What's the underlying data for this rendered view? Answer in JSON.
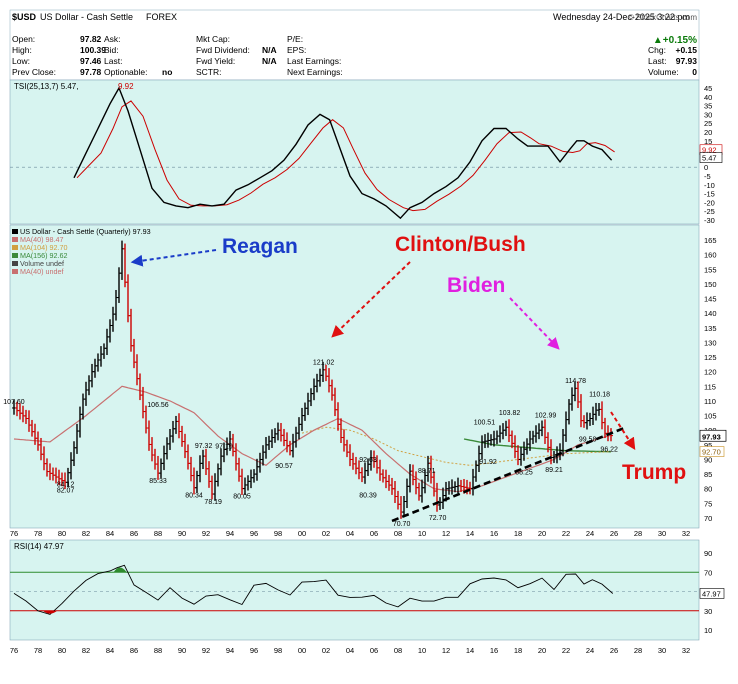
{
  "header": {
    "symbol": "$USD",
    "name": "US Dollar - Cash Settle",
    "exchange": "FOREX",
    "date": "Wednesday 24-Dec-2025 3:22 pm",
    "brand": "© StockCharts.com",
    "change_pct": "▲+0.15%",
    "fields": [
      {
        "label": "Open:",
        "value": "97.82"
      },
      {
        "label": "High:",
        "value": "100.39"
      },
      {
        "label": "Low:",
        "value": "97.46"
      },
      {
        "label": "Prev Close:",
        "value": "97.78"
      }
    ],
    "fields2": [
      {
        "label": "Ask:",
        "value": ""
      },
      {
        "label": "Bid:",
        "value": ""
      },
      {
        "label": "Last:",
        "value": ""
      },
      {
        "label": "Optionable:",
        "value": "no"
      }
    ],
    "fields3": [
      {
        "label": "Mkt Cap:",
        "value": ""
      },
      {
        "label": "Fwd Dividend:",
        "value": "N/A"
      },
      {
        "label": "Fwd Yield:",
        "value": "N/A"
      },
      {
        "label": "SCTR:",
        "value": ""
      }
    ],
    "fields4": [
      {
        "label": "P/E:",
        "value": ""
      },
      {
        "label": "EPS:",
        "value": ""
      },
      {
        "label": "Last Earnings:",
        "value": ""
      },
      {
        "label": "Next Earnings:",
        "value": ""
      }
    ],
    "fields5": [
      {
        "label": "Chg:",
        "value": "+0.15"
      },
      {
        "label": "Last:",
        "value": "97.93"
      },
      {
        "label": "Volume:",
        "value": "0"
      }
    ]
  },
  "colors": {
    "panel_bg": "#d7f4f0",
    "up": "#000000",
    "down": "#cc0000",
    "tsi": "#000000",
    "tsi_signal": "#cc0000",
    "ma40": "#c87070",
    "ma104": "#d0a040",
    "ma156": "#3a8a3a",
    "reagan": "#1a3cc8",
    "clinton": "#e01010",
    "biden": "#e020e0",
    "trump": "#e01010",
    "rsi_upper": "#2e8b2e",
    "rsi_lower": "#cc0000"
  },
  "chart_data": [
    {
      "type": "line",
      "title": "TSI(25,13,7) 5.47, 9.92",
      "indicator": "TSI",
      "legend_main": "TSI(25,13,7) 5.47,",
      "legend_signal": "9.92",
      "ylim": [
        -30,
        45
      ],
      "y_ticks": [
        45,
        40,
        35,
        30,
        25,
        20,
        15,
        10,
        5,
        0,
        -5,
        -10,
        -15,
        -20,
        -25,
        -30
      ],
      "y_tick_labels": [
        "45",
        "40",
        "35",
        "30",
        "25",
        "20",
        "15",
        "10",
        "5",
        "0",
        "-5",
        "-10",
        "-15",
        "-20",
        "-25",
        "-30"
      ],
      "last_labels": [
        "9.92",
        "5.47"
      ],
      "series": [
        {
          "x": [
            1981,
            1982,
            1983,
            1984,
            1984.75,
            1985.5,
            1986.5,
            1987.5,
            1988.5,
            1989.5,
            1990.5,
            1991.5,
            1992.5,
            1993.5,
            1994.5,
            1995.5,
            1996.5,
            1997.5,
            1998.5,
            1999.5,
            2000.5,
            2001.5,
            2002.3,
            2003.2,
            2004,
            2005,
            2006,
            2007,
            2008.2,
            2009,
            2010,
            2011,
            2012,
            2013,
            2014,
            2015,
            2016,
            2017,
            2018,
            2018.8,
            2019.5,
            2020.5,
            2021.5,
            2022.3,
            2022.9,
            2023.5,
            2024.2,
            2025,
            2025.8
          ],
          "values": [
            -6,
            8,
            22,
            36,
            45,
            32,
            10,
            -12,
            -20,
            -22,
            -23,
            -21,
            -22,
            -21,
            -13,
            -10,
            -6,
            -2,
            4,
            13,
            24,
            30,
            27,
            10,
            -5,
            -15,
            -18,
            -22,
            -29,
            -23,
            -20,
            -15,
            -11,
            -6,
            3,
            15,
            22,
            22,
            16,
            12,
            12,
            12,
            3,
            10,
            15,
            15,
            12,
            10,
            4
          ]
        }
      ]
    },
    {
      "type": "bar",
      "title": "US Dollar - Cash Settle (Quarterly) 97.93",
      "legend": [
        "US Dollar - Cash Settle (Quarterly) 97.93",
        "MA(40) 98.47",
        "MA(104) 92.70",
        "MA(156) 92.62",
        "Volume undef",
        "MA(40) undef"
      ],
      "ylim": [
        65,
        165
      ],
      "y_ticks": [
        165,
        160,
        155,
        150,
        145,
        140,
        135,
        130,
        125,
        120,
        115,
        110,
        105,
        100,
        95,
        90,
        85,
        80,
        75,
        70
      ],
      "y_tick_labels": [
        "165",
        "160",
        "155",
        "150",
        "145",
        "140",
        "135",
        "130",
        "125",
        "120",
        "115",
        "110",
        "105",
        "100",
        "95",
        "90",
        "85",
        "80",
        "75",
        "70"
      ],
      "x_ticks": [
        1976,
        1978,
        1980,
        1982,
        1984,
        1986,
        1988,
        1990,
        1992,
        1994,
        1996,
        1998,
        2000,
        2002,
        2004,
        2006,
        2008,
        2010,
        2012,
        2014,
        2016,
        2018,
        2020,
        2022,
        2024,
        2026,
        2028,
        2030,
        2032
      ],
      "x_tick_labels": [
        "76",
        "78",
        "80",
        "82",
        "84",
        "86",
        "88",
        "90",
        "92",
        "94",
        "96",
        "98",
        "00",
        "02",
        "04",
        "06",
        "08",
        "10",
        "12",
        "14",
        "16",
        "18",
        "20",
        "22",
        "24",
        "26",
        "28",
        "30",
        "32"
      ],
      "last_labels": [
        "97.93",
        "92.70"
      ],
      "price_key": [
        [
          1976,
          107.6
        ],
        [
          1977,
          104
        ],
        [
          1978,
          95
        ],
        [
          1978.7,
          86
        ],
        [
          1979.5,
          84
        ],
        [
          1980.3,
          82.07
        ],
        [
          1981,
          94
        ],
        [
          1981.7,
          110
        ],
        [
          1982.5,
          120
        ],
        [
          1983.5,
          128
        ],
        [
          1984.4,
          142
        ],
        [
          1985,
          162
        ],
        [
          1985.7,
          130
        ],
        [
          1986.5,
          112
        ],
        [
          1987.3,
          94
        ],
        [
          1988,
          85.33
        ],
        [
          1988.8,
          96
        ],
        [
          1989.5,
          103
        ],
        [
          1990.3,
          92
        ],
        [
          1991,
          80.34
        ],
        [
          1991.7,
          92
        ],
        [
          1992.5,
          78.19
        ],
        [
          1993.3,
          92
        ],
        [
          1994,
          97
        ],
        [
          1995,
          80.05
        ],
        [
          1996,
          85
        ],
        [
          1997,
          95
        ],
        [
          1998,
          100
        ],
        [
          1999,
          93
        ],
        [
          2000,
          105
        ],
        [
          2001,
          115
        ],
        [
          2001.8,
          121.02
        ],
        [
          2002.5,
          112
        ],
        [
          2003.2,
          98
        ],
        [
          2004,
          90
        ],
        [
          2005,
          84
        ],
        [
          2005.8,
          91
        ],
        [
          2006.5,
          85
        ],
        [
          2007.5,
          80
        ],
        [
          2008.3,
          71.5
        ],
        [
          2009,
          86
        ],
        [
          2009.8,
          77
        ],
        [
          2010.5,
          88.71
        ],
        [
          2011.3,
          73.5
        ],
        [
          2012,
          80
        ],
        [
          2013,
          81
        ],
        [
          2014,
          80
        ],
        [
          2015,
          96
        ],
        [
          2016,
          97
        ],
        [
          2017,
          101
        ],
        [
          2018,
          90
        ],
        [
          2019,
          97
        ],
        [
          2020,
          101
        ],
        [
          2020.8,
          90
        ],
        [
          2021.5,
          93
        ],
        [
          2022.3,
          110
        ],
        [
          2022.8,
          114.78
        ],
        [
          2023.3,
          102
        ],
        [
          2024,
          104
        ],
        [
          2024.7,
          108
        ],
        [
          2025.2,
          99
        ],
        [
          2025.9,
          97.93
        ]
      ],
      "ma_key": [
        [
          1976,
          97
        ],
        [
          1979,
          96
        ],
        [
          1982,
          105
        ],
        [
          1985,
          115
        ],
        [
          1987,
          113
        ],
        [
          1989,
          110
        ],
        [
          1991,
          106
        ],
        [
          1993,
          98
        ],
        [
          1995,
          92
        ],
        [
          1997,
          88
        ],
        [
          1999,
          95
        ],
        [
          2001,
          100
        ],
        [
          2003,
          104
        ],
        [
          2005,
          100
        ],
        [
          2007,
          92
        ],
        [
          2009,
          85
        ],
        [
          2011,
          80
        ],
        [
          2013,
          79
        ],
        [
          2015,
          81
        ],
        [
          2017,
          84
        ],
        [
          2019,
          87
        ],
        [
          2021,
          90
        ],
        [
          2023,
          95
        ],
        [
          2025.9,
          98.47
        ]
      ],
      "ma104_key": [
        [
          2000,
          99
        ],
        [
          2002,
          101
        ],
        [
          2004,
          100
        ],
        [
          2006,
          97
        ],
        [
          2008,
          93
        ],
        [
          2010,
          91
        ],
        [
          2012,
          89
        ],
        [
          2014,
          88
        ],
        [
          2016,
          89
        ],
        [
          2018,
          90
        ],
        [
          2020,
          91
        ],
        [
          2022,
          92
        ],
        [
          2025.9,
          92.7
        ]
      ],
      "ma156_key": [
        [
          2013.5,
          97
        ],
        [
          2016,
          95
        ],
        [
          2019,
          94
        ],
        [
          2022,
          93
        ],
        [
          2025.9,
          92.62
        ]
      ],
      "trendline": [
        [
          2007.5,
          69
        ],
        [
          2027,
          101
        ]
      ],
      "value_labels": [
        {
          "x": 1976,
          "y": 107.6,
          "text": "107.60"
        },
        {
          "x": 1980.3,
          "y": 82.07,
          "text": "82.07"
        },
        {
          "x": 1980.3,
          "y": 84.12,
          "text": "84.12"
        },
        {
          "x": 1988,
          "y": 106.56,
          "text": "106.56"
        },
        {
          "x": 1988,
          "y": 85.33,
          "text": "85.33"
        },
        {
          "x": 1991,
          "y": 80.34,
          "text": "80.34"
        },
        {
          "x": 1991.8,
          "y": 97.32,
          "text": "97.32"
        },
        {
          "x": 1992.6,
          "y": 78.19,
          "text": "78.19"
        },
        {
          "x": 1993.5,
          "y": 97.1,
          "text": "97.10"
        },
        {
          "x": 1995,
          "y": 80.05,
          "text": "80.05"
        },
        {
          "x": 1998.5,
          "y": 90.57,
          "text": "90.57"
        },
        {
          "x": 2001.8,
          "y": 121.02,
          "text": "121.02"
        },
        {
          "x": 2005.5,
          "y": 92.63,
          "text": "92.63"
        },
        {
          "x": 2005.5,
          "y": 80.39,
          "text": "80.39"
        },
        {
          "x": 2008.3,
          "y": 70.7,
          "text": "70.70"
        },
        {
          "x": 2010.4,
          "y": 88.71,
          "text": "88.71"
        },
        {
          "x": 2011.3,
          "y": 72.7,
          "text": "72.70"
        },
        {
          "x": 2015.2,
          "y": 100.51,
          "text": "100.51"
        },
        {
          "x": 2015.5,
          "y": 91.92,
          "text": "91.92"
        },
        {
          "x": 2017.3,
          "y": 103.82,
          "text": "103.82"
        },
        {
          "x": 2018.5,
          "y": 88.25,
          "text": "88.25"
        },
        {
          "x": 2020.3,
          "y": 102.99,
          "text": "102.99"
        },
        {
          "x": 2021,
          "y": 89.21,
          "text": "89.21"
        },
        {
          "x": 2022.8,
          "y": 114.78,
          "text": "114.78"
        },
        {
          "x": 2023.8,
          "y": 99.58,
          "text": "99.58"
        },
        {
          "x": 2024.8,
          "y": 110.18,
          "text": "110.18"
        },
        {
          "x": 2025.6,
          "y": 96.22,
          "text": "96.22"
        }
      ],
      "annotations": [
        {
          "text": "Reagan",
          "color_key": "reagan"
        },
        {
          "text": "Clinton/Bush",
          "color_key": "clinton"
        },
        {
          "text": "Biden",
          "color_key": "biden"
        },
        {
          "text": "Trump",
          "color_key": "trump"
        }
      ]
    },
    {
      "type": "line",
      "title": "RSI(14) 47.97",
      "ylim": [
        0,
        100
      ],
      "y_ticks": [
        90,
        70,
        50,
        30,
        10
      ],
      "y_tick_labels": [
        "90",
        "70",
        "50",
        "30",
        "10"
      ],
      "last_label": "47.97",
      "series": [
        {
          "x": [
            1976,
            1977,
            1978,
            1979,
            1980,
            1981,
            1982,
            1983,
            1984,
            1984.6,
            1985.2,
            1986,
            1987,
            1988,
            1989,
            1990,
            1991,
            1992,
            1993,
            1994,
            1995,
            1996,
            1997,
            1998,
            1999,
            2000,
            2001,
            2002,
            2003,
            2004,
            2005,
            2006,
            2007,
            2008,
            2009,
            2010,
            2011,
            2012,
            2013,
            2014,
            2015,
            2016,
            2017,
            2018,
            2019,
            2020,
            2021,
            2022,
            2022.8,
            2023.5,
            2024.2,
            2025,
            2025.9
          ],
          "values": [
            48,
            40,
            30,
            26,
            38,
            50,
            62,
            68,
            72,
            74,
            78,
            56,
            50,
            40,
            55,
            42,
            38,
            44,
            48,
            40,
            38,
            55,
            60,
            50,
            48,
            58,
            62,
            60,
            48,
            42,
            46,
            44,
            40,
            32,
            45,
            38,
            42,
            42,
            46,
            56,
            65,
            62,
            64,
            52,
            60,
            62,
            54,
            66,
            70,
            56,
            64,
            56,
            47.97
          ]
        }
      ]
    }
  ]
}
